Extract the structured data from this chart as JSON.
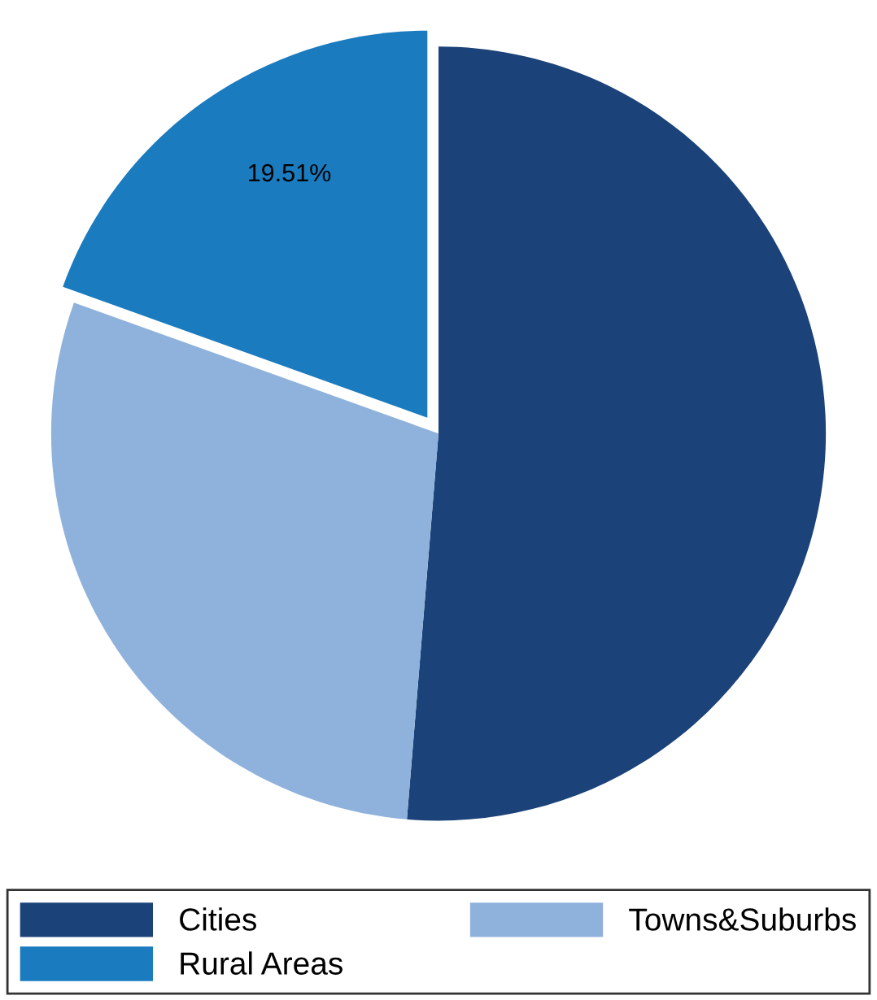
{
  "chart_data": {
    "type": "pie",
    "categories": [
      "Cities",
      "Towns&Suburbs",
      "Rural Areas"
    ],
    "values": [
      51.3,
      29.19,
      19.51
    ],
    "colors": [
      "#1b4279",
      "#8fb2dc",
      "#1a7bbf"
    ],
    "value_labels": [
      null,
      null,
      "19.51%"
    ],
    "legend": "bottom"
  }
}
